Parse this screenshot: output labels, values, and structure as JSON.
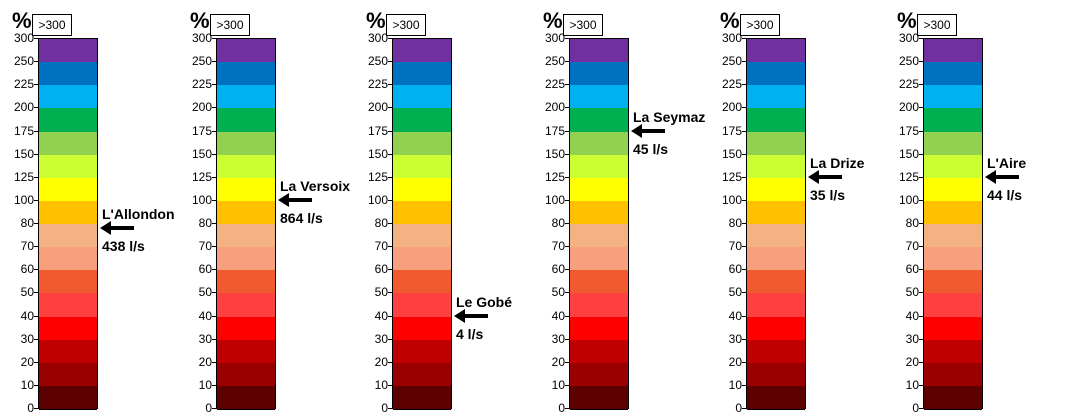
{
  "chart_data": [
    {
      "type": "gauge",
      "scale_label": "%",
      "overflow_label": ">300",
      "ticks": [
        "300",
        "250",
        "225",
        "200",
        "175",
        "150",
        "125",
        "100",
        "80",
        "70",
        "60",
        "50",
        "40",
        "30",
        "20",
        "10",
        "0"
      ],
      "band_colors": [
        "#7030a0",
        "#0070c0",
        "#00b0f0",
        "#00b050",
        "#92d050",
        "#ccff33",
        "#ffff00",
        "#ffc000",
        "#f4b183",
        "#f8a07e",
        "#f15a2f",
        "#ff4040",
        "#ff0000",
        "#c00000",
        "#990000",
        "#5c0000"
      ],
      "station": "L'Allondon",
      "flow_label": "438 l/s",
      "percent": 78
    },
    {
      "type": "gauge",
      "scale_label": "%",
      "overflow_label": ">300",
      "ticks": [
        "300",
        "250",
        "225",
        "200",
        "175",
        "150",
        "125",
        "100",
        "80",
        "70",
        "60",
        "50",
        "40",
        "30",
        "20",
        "10",
        "0"
      ],
      "band_colors": [
        "#7030a0",
        "#0070c0",
        "#00b0f0",
        "#00b050",
        "#92d050",
        "#ccff33",
        "#ffff00",
        "#ffc000",
        "#f4b183",
        "#f8a07e",
        "#f15a2f",
        "#ff4040",
        "#ff0000",
        "#c00000",
        "#990000",
        "#5c0000"
      ],
      "station": "La Versoix",
      "flow_label": "864 l/s",
      "percent": 100
    },
    {
      "type": "gauge",
      "scale_label": "%",
      "overflow_label": ">300",
      "ticks": [
        "300",
        "250",
        "225",
        "200",
        "175",
        "150",
        "125",
        "100",
        "80",
        "70",
        "60",
        "50",
        "40",
        "30",
        "20",
        "10",
        "0"
      ],
      "band_colors": [
        "#7030a0",
        "#0070c0",
        "#00b0f0",
        "#00b050",
        "#92d050",
        "#ccff33",
        "#ffff00",
        "#ffc000",
        "#f4b183",
        "#f8a07e",
        "#f15a2f",
        "#ff4040",
        "#ff0000",
        "#c00000",
        "#990000",
        "#5c0000"
      ],
      "station": "Le Gobé",
      "flow_label": "4 l/s",
      "percent": 40
    },
    {
      "type": "gauge",
      "scale_label": "%",
      "overflow_label": ">300",
      "ticks": [
        "300",
        "250",
        "225",
        "200",
        "175",
        "150",
        "125",
        "100",
        "80",
        "70",
        "60",
        "50",
        "40",
        "30",
        "20",
        "10",
        "0"
      ],
      "band_colors": [
        "#7030a0",
        "#0070c0",
        "#00b0f0",
        "#00b050",
        "#92d050",
        "#ccff33",
        "#ffff00",
        "#ffc000",
        "#f4b183",
        "#f8a07e",
        "#f15a2f",
        "#ff4040",
        "#ff0000",
        "#c00000",
        "#990000",
        "#5c0000"
      ],
      "station": "La Seymaz",
      "flow_label": "45 l/s",
      "percent": 175
    },
    {
      "type": "gauge",
      "scale_label": "%",
      "overflow_label": ">300",
      "ticks": [
        "300",
        "250",
        "225",
        "200",
        "175",
        "150",
        "125",
        "100",
        "80",
        "70",
        "60",
        "50",
        "40",
        "30",
        "20",
        "10",
        "0"
      ],
      "band_colors": [
        "#7030a0",
        "#0070c0",
        "#00b0f0",
        "#00b050",
        "#92d050",
        "#ccff33",
        "#ffff00",
        "#ffc000",
        "#f4b183",
        "#f8a07e",
        "#f15a2f",
        "#ff4040",
        "#ff0000",
        "#c00000",
        "#990000",
        "#5c0000"
      ],
      "station": "La Drize",
      "flow_label": "35 l/s",
      "percent": 125
    },
    {
      "type": "gauge",
      "scale_label": "%",
      "overflow_label": ">300",
      "ticks": [
        "300",
        "250",
        "225",
        "200",
        "175",
        "150",
        "125",
        "100",
        "80",
        "70",
        "60",
        "50",
        "40",
        "30",
        "20",
        "10",
        "0"
      ],
      "band_colors": [
        "#7030a0",
        "#0070c0",
        "#00b0f0",
        "#00b050",
        "#92d050",
        "#ccff33",
        "#ffff00",
        "#ffc000",
        "#f4b183",
        "#f8a07e",
        "#f15a2f",
        "#ff4040",
        "#ff0000",
        "#c00000",
        "#990000",
        "#5c0000"
      ],
      "station": "L'Aire",
      "flow_label": "44 l/s",
      "percent": 125
    }
  ]
}
